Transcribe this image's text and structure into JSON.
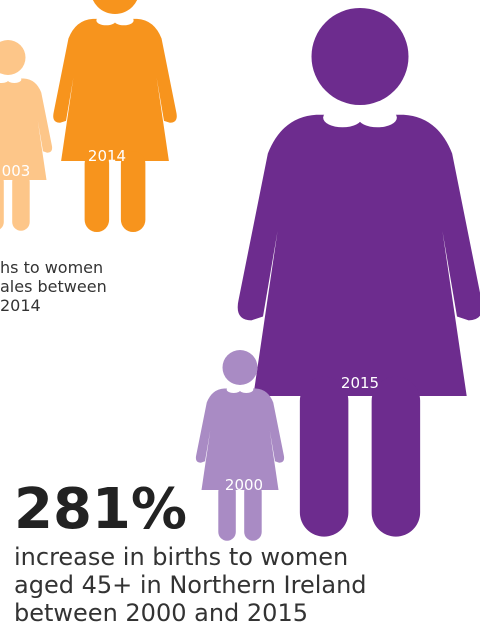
{
  "figures": [
    {
      "label": "003"
    },
    {
      "label": "2014"
    },
    {
      "label": "2015"
    },
    {
      "label": "2000"
    }
  ],
  "side_text": [
    "hs to women",
    "ales between",
    "2014"
  ],
  "headline": "281%",
  "description": [
    "increase in births to women",
    "aged 45+ in Northern Ireland",
    "between 2000 and 2015"
  ]
}
